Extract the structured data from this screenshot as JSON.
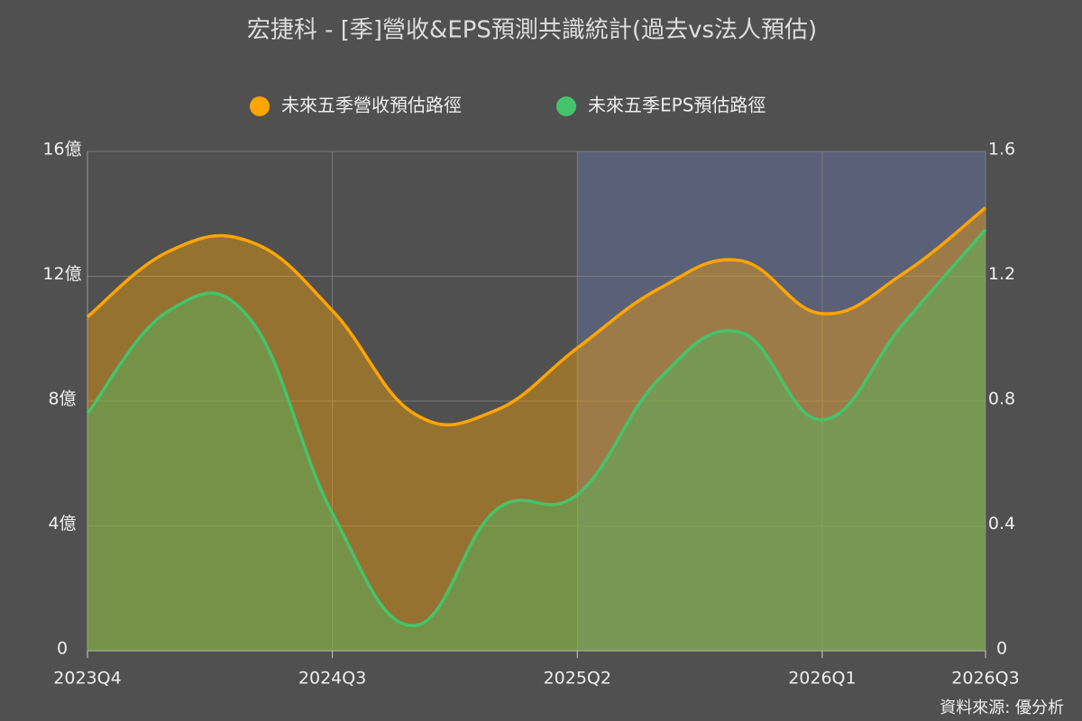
{
  "chart_data": {
    "type": "area",
    "title": "宏捷科 - [季]營收&EPS預測共識統計(過去vs法人預估)",
    "source": "資料來源: 優分析",
    "categories": [
      "2023Q4",
      null,
      null,
      "2024Q3",
      null,
      null,
      "2025Q2",
      null,
      null,
      "2026Q1",
      null,
      "2026Q3"
    ],
    "series": [
      {
        "name": "未來五季營收預估路徑",
        "color": "#ffa500",
        "values": [
          10.7,
          12.8,
          13.1,
          10.9,
          7.6,
          7.7,
          9.7,
          11.6,
          12.5,
          10.8,
          12.1,
          14.2
        ]
      },
      {
        "name": "未來五季EPS預估路徑",
        "color": "#44c46a",
        "axis": "y2",
        "values": [
          0.76,
          1.09,
          1.06,
          0.44,
          0.08,
          0.45,
          0.5,
          0.87,
          1.02,
          0.74,
          1.05,
          1.35
        ]
      }
    ],
    "ylim": [
      0,
      16
    ],
    "yticks": [
      0,
      {
        "value": 4,
        "label": "4億"
      },
      {
        "value": 8,
        "label": "8億"
      },
      {
        "value": 12,
        "label": "12億"
      },
      {
        "value": 16,
        "label": "16億"
      }
    ],
    "y2lim": [
      0,
      1.6
    ],
    "y2ticks": [
      0,
      0.4,
      0.8,
      1.2,
      1.6
    ],
    "grid": true,
    "forecast_band": {
      "from": "2025Q2",
      "to": "2026Q3",
      "color": "#5a6078"
    }
  }
}
